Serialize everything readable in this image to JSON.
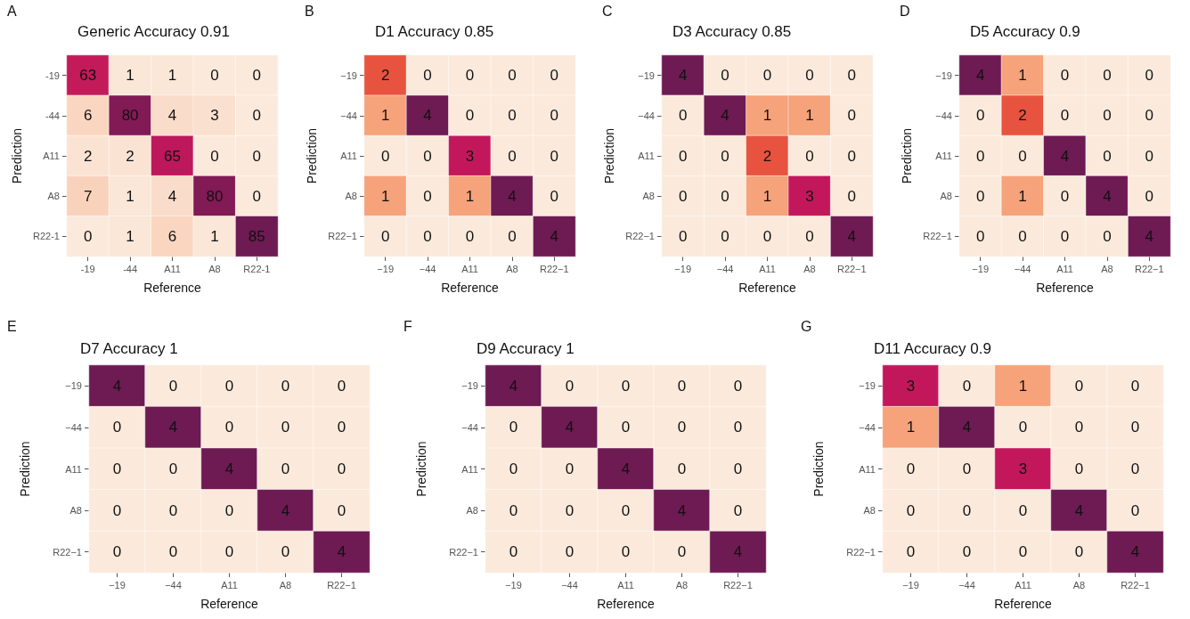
{
  "chart_data": [
    {
      "type": "heatmap",
      "title": "Generic Accuracy 0.91",
      "xlabel": "Reference",
      "ylabel": "Prediction",
      "annotations": [
        "A"
      ],
      "categories": [
        "-19",
        "-44",
        "A11",
        "A8",
        "R22-1"
      ],
      "y_categories": [
        "-19",
        "-44",
        "A11",
        "A8",
        "R22-1"
      ],
      "data_labels": true,
      "cells": [
        [
          63,
          1,
          1,
          0,
          0
        ],
        [
          6,
          80,
          4,
          3,
          0
        ],
        [
          2,
          2,
          65,
          0,
          0
        ],
        [
          7,
          1,
          4,
          80,
          0
        ],
        [
          0,
          1,
          6,
          1,
          85
        ]
      ]
    },
    {
      "type": "heatmap",
      "title": "D1 Accuracy 0.85",
      "xlabel": "Reference",
      "ylabel": "Prediction",
      "annotations": [
        "B"
      ],
      "categories": [
        "−19",
        "−44",
        "A11",
        "A8",
        "R22−1"
      ],
      "y_categories": [
        "−19",
        "−44",
        "A11",
        "A8",
        "R22−1"
      ],
      "data_labels": true,
      "cells": [
        [
          2,
          0,
          0,
          0,
          0
        ],
        [
          1,
          4,
          0,
          0,
          0
        ],
        [
          0,
          0,
          3,
          0,
          0
        ],
        [
          1,
          0,
          1,
          4,
          0
        ],
        [
          0,
          0,
          0,
          0,
          4
        ]
      ]
    },
    {
      "type": "heatmap",
      "title": "D3 Accuracy 0.85",
      "xlabel": "Reference",
      "ylabel": "Prediction",
      "annotations": [
        "C"
      ],
      "categories": [
        "−19",
        "−44",
        "A11",
        "A8",
        "R22−1"
      ],
      "y_categories": [
        "−19",
        "−44",
        "A11",
        "A8",
        "R22−1"
      ],
      "data_labels": true,
      "cells": [
        [
          4,
          0,
          0,
          0,
          0
        ],
        [
          0,
          4,
          1,
          1,
          0
        ],
        [
          0,
          0,
          2,
          0,
          0
        ],
        [
          0,
          0,
          1,
          3,
          0
        ],
        [
          0,
          0,
          0,
          0,
          4
        ]
      ]
    },
    {
      "type": "heatmap",
      "title": "D5 Accuracy 0.9",
      "xlabel": "Reference",
      "ylabel": "Prediction",
      "annotations": [
        "D"
      ],
      "categories": [
        "−19",
        "−44",
        "A11",
        "A8",
        "R22−1"
      ],
      "y_categories": [
        "−19",
        "−44",
        "A11",
        "A8",
        "R22−1"
      ],
      "data_labels": true,
      "cells": [
        [
          4,
          1,
          0,
          0,
          0
        ],
        [
          0,
          2,
          0,
          0,
          0
        ],
        [
          0,
          0,
          4,
          0,
          0
        ],
        [
          0,
          1,
          0,
          4,
          0
        ],
        [
          0,
          0,
          0,
          0,
          4
        ]
      ]
    },
    {
      "type": "heatmap",
      "title": "D7 Accuracy 1",
      "xlabel": "Reference",
      "ylabel": "Prediction",
      "annotations": [
        "E"
      ],
      "categories": [
        "−19",
        "−44",
        "A11",
        "A8",
        "R22−1"
      ],
      "y_categories": [
        "−19",
        "−44",
        "A11",
        "A8",
        "R22−1"
      ],
      "data_labels": true,
      "cells": [
        [
          4,
          0,
          0,
          0,
          0
        ],
        [
          0,
          4,
          0,
          0,
          0
        ],
        [
          0,
          0,
          4,
          0,
          0
        ],
        [
          0,
          0,
          0,
          4,
          0
        ],
        [
          0,
          0,
          0,
          0,
          4
        ]
      ]
    },
    {
      "type": "heatmap",
      "title": "D9 Accuracy 1",
      "xlabel": "Reference",
      "ylabel": "Prediction",
      "annotations": [
        "F"
      ],
      "categories": [
        "−19",
        "−44",
        "A11",
        "A8",
        "R22−1"
      ],
      "y_categories": [
        "−19",
        "−44",
        "A11",
        "A8",
        "R22−1"
      ],
      "data_labels": true,
      "cells": [
        [
          4,
          0,
          0,
          0,
          0
        ],
        [
          0,
          4,
          0,
          0,
          0
        ],
        [
          0,
          0,
          4,
          0,
          0
        ],
        [
          0,
          0,
          0,
          4,
          0
        ],
        [
          0,
          0,
          0,
          0,
          4
        ]
      ]
    },
    {
      "type": "heatmap",
      "title": "D11 Accuracy 0.9",
      "xlabel": "Reference",
      "ylabel": "Prediction",
      "annotations": [
        "G"
      ],
      "categories": [
        "−19",
        "−44",
        "A11",
        "A8",
        "R22−1"
      ],
      "y_categories": [
        "−19",
        "−44",
        "A11",
        "A8",
        "R22−1"
      ],
      "data_labels": true,
      "cells": [
        [
          3,
          0,
          1,
          0,
          0
        ],
        [
          1,
          4,
          0,
          0,
          0
        ],
        [
          0,
          0,
          3,
          0,
          0
        ],
        [
          0,
          0,
          0,
          4,
          0
        ],
        [
          0,
          0,
          0,
          0,
          4
        ]
      ]
    }
  ]
}
